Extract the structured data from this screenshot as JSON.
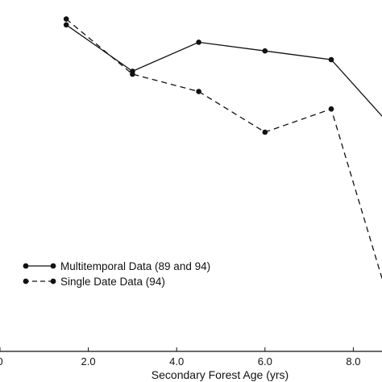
{
  "chart_data": {
    "type": "line",
    "xlabel": "Secondary Forest Age (yrs)",
    "ylabel": "",
    "xlim": [
      0.6,
      8.8
    ],
    "ylim": [
      0,
      1
    ],
    "x_ticks": [
      {
        "value": 0.0,
        "label": "0"
      },
      {
        "value": 2.0,
        "label": "2.0"
      },
      {
        "value": 4.0,
        "label": "4.0"
      },
      {
        "value": 6.0,
        "label": "6.0"
      },
      {
        "value": 8.0,
        "label": "8.0"
      }
    ],
    "grid": false,
    "legend_position": "bottom-left",
    "series": [
      {
        "name": "Multitemporal Data (89 and 94)",
        "line_style": "solid",
        "color": "#111111",
        "x": [
          1.5,
          3.0,
          4.5,
          6.0,
          7.5,
          8.8
        ],
        "y": [
          0.97,
          0.81,
          0.91,
          0.88,
          0.85,
          0.63
        ]
      },
      {
        "name": "Single Date Data (94)",
        "line_style": "dashed",
        "color": "#111111",
        "x": [
          1.5,
          3.0,
          4.5,
          6.0,
          7.5,
          8.8
        ],
        "y": [
          0.99,
          0.8,
          0.74,
          0.6,
          0.68,
          0.02
        ]
      }
    ]
  }
}
